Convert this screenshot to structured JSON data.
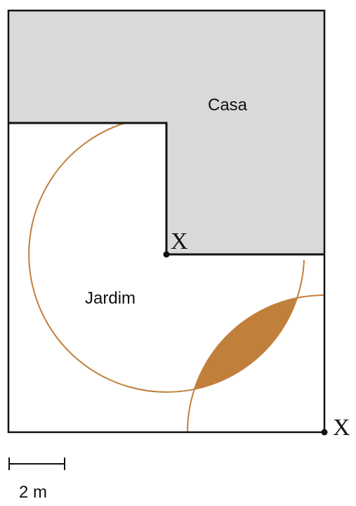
{
  "labels": {
    "house": "Casa",
    "garden": "Jardim",
    "point_center": "X",
    "point_corner": "X",
    "scale": "2 m"
  }
}
